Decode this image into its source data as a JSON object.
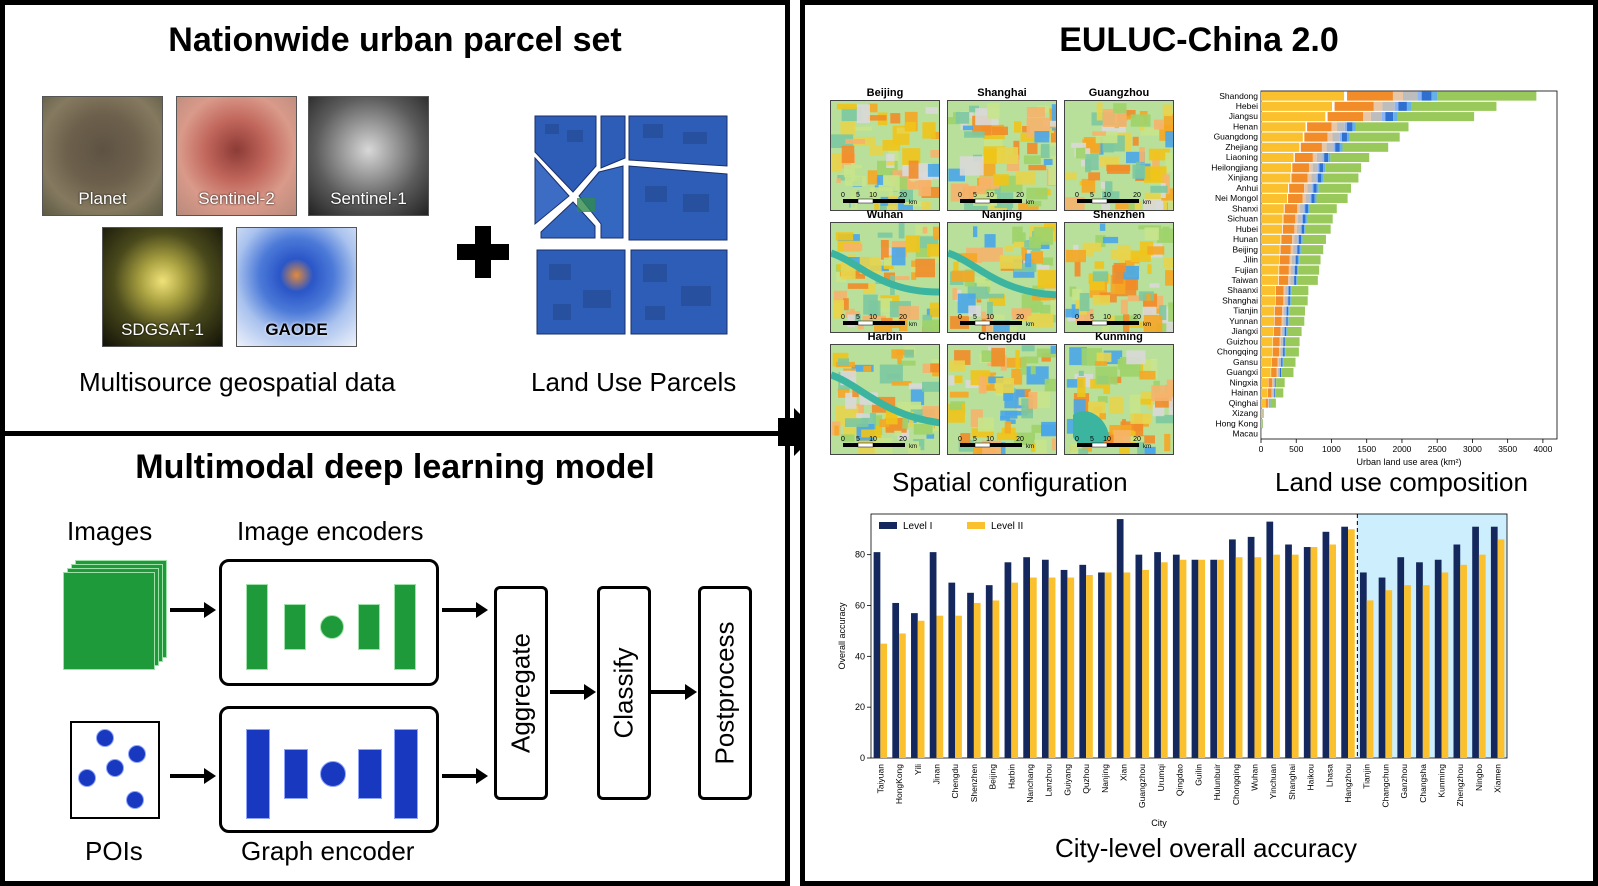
{
  "top_left": {
    "title": "Nationwide urban parcel set",
    "thumbs": [
      "Planet",
      "Sentinel-2",
      "Sentinel-1",
      "SDGSAT-1",
      "GAODE"
    ],
    "caption_left": "Multisource geospatial data",
    "caption_right": "Land Use Parcels"
  },
  "bottom_left": {
    "title": "Multimodal deep learning model",
    "images_label": "Images",
    "pois_label": "POIs",
    "image_encoders_label": "Image encoders",
    "graph_encoder_label": "Graph encoder",
    "aggregate": "Aggregate",
    "classify": "Classify",
    "postprocess": "Postprocess"
  },
  "right": {
    "title": "EULUC-China 2.0",
    "maps": [
      "Beijing",
      "Shanghai",
      "Guangzhou",
      "Wuhan",
      "Nanjing",
      "Shenzhen",
      "Harbin",
      "Chengdu",
      "Kunming"
    ],
    "scale_ticks": [
      "0",
      "5",
      "10",
      "20"
    ],
    "scale_unit": "km",
    "caption_spatial": "Spatial configuration",
    "caption_composition": "Land use composition",
    "caption_accuracy": "City-level overall accuracy"
  },
  "colors": {
    "level1": "#14285e",
    "level2": "#fbc02d",
    "highlight": "#cdeefc",
    "green": "#1f9a3a",
    "blue": "#1838c0"
  },
  "chart_data": [
    {
      "type": "bar",
      "orientation": "horizontal",
      "stacked": true,
      "categories": [
        "Shandong",
        "Hebei",
        "Jiangsu",
        "Henan",
        "Guangdong",
        "Zhejiang",
        "Liaoning",
        "Heilongjiang",
        "Xinjiang",
        "Anhui",
        "Nei Mongol",
        "Shanxi",
        "Sichuan",
        "Hubei",
        "Hunan",
        "Beijing",
        "Jilin",
        "Fujian",
        "Taiwan",
        "Shaanxi",
        "Shanghai",
        "Tianjin",
        "Yunnan",
        "Jiangxi",
        "Guizhou",
        "Chongqing",
        "Gansu",
        "Guangxi",
        "Ningxia",
        "Hainan",
        "Qinghai",
        "Xizang",
        "Hong Kong",
        "Macau"
      ],
      "totals": [
        4070,
        3480,
        3150,
        2180,
        2050,
        1880,
        1600,
        1480,
        1440,
        1330,
        1280,
        1120,
        1060,
        1030,
        960,
        920,
        880,
        860,
        840,
        700,
        690,
        650,
        640,
        600,
        570,
        560,
        510,
        480,
        350,
        330,
        220,
        40,
        30,
        10
      ],
      "xlabel": "Urban land use area (km²)",
      "xlim": [
        0,
        4200
      ],
      "xticks": [
        "0",
        "500",
        "1000",
        "1500",
        "2000",
        "2500",
        "3000",
        "3500",
        "4000"
      ]
    },
    {
      "type": "bar",
      "categories": [
        "Taiyuan",
        "HongKong",
        "Yili",
        "Jinan",
        "Chengdu",
        "Shenzhen",
        "Beijing",
        "Harbin",
        "Nanchang",
        "Lanzhou",
        "Guiyang",
        "Quzhou",
        "Nanjing",
        "Xian",
        "Guangzhou",
        "Urumqi",
        "Qingdao",
        "Guilin",
        "Hulunbuir",
        "Chongqing",
        "Wuhan",
        "Yinchuan",
        "Shanghai",
        "Haikou",
        "Lhasa",
        "Hangzhou",
        "Tianjin",
        "Changchun",
        "Ganzhou",
        "Changsha",
        "Kunming",
        "Zhengzhou",
        "Ningbo",
        "Xiamen"
      ],
      "series": [
        {
          "name": "Level I",
          "values": [
            81,
            61,
            57,
            81,
            69,
            65,
            68,
            77,
            79,
            78,
            74,
            76,
            73,
            94,
            80,
            81,
            80,
            78,
            78,
            86,
            87,
            93,
            84,
            83,
            89,
            91,
            73,
            71,
            79,
            77,
            78,
            84,
            91,
            91
          ]
        },
        {
          "name": "Level II",
          "values": [
            45,
            49,
            54,
            56,
            56,
            61,
            62,
            69,
            71,
            71,
            71,
            72,
            73,
            73,
            74,
            77,
            78,
            78,
            78,
            79,
            79,
            80,
            80,
            83,
            84,
            90,
            62,
            66,
            68,
            68,
            73,
            76,
            80,
            86
          ]
        }
      ],
      "xlabel": "City",
      "ylabel": "Overall accuracy",
      "ylim": [
        0,
        96
      ],
      "yticks": [
        "0",
        "20",
        "40",
        "60",
        "80"
      ],
      "legend_position": "top-left"
    }
  ]
}
